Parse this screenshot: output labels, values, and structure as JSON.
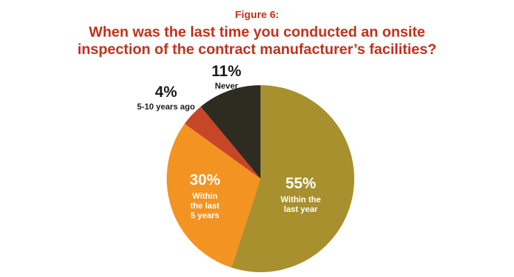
{
  "header": {
    "figure_label": "Figure 6:",
    "title_line1": "When was the last time you conducted an onsite",
    "title_line2": "inspection of the contract manufacturer’s facilities?"
  },
  "colors": {
    "title": "#c0331b",
    "label_dark": "#1a1a1a",
    "label_light": "#ffffff"
  },
  "chart_data": {
    "type": "pie",
    "title": "When was the last time you conducted an onsite inspection of the contract manufacturer’s facilities?",
    "slices": [
      {
        "percent_label": "55%",
        "text_lines": [
          "Within the",
          "last year"
        ],
        "value": 55,
        "color": "#a8902e",
        "label_color": "#ffffff"
      },
      {
        "percent_label": "30%",
        "text_lines": [
          "Within",
          "the last",
          "5 years"
        ],
        "value": 30,
        "color": "#f39321",
        "label_color": "#ffffff"
      },
      {
        "percent_label": "4%",
        "text_lines": [
          "5-10 years ago"
        ],
        "value": 4,
        "color": "#c74628",
        "label_color": "#1a1a1a"
      },
      {
        "percent_label": "11%",
        "text_lines": [
          "Never"
        ],
        "value": 11,
        "color": "#2e2b20",
        "label_color": "#1a1a1a"
      }
    ]
  }
}
